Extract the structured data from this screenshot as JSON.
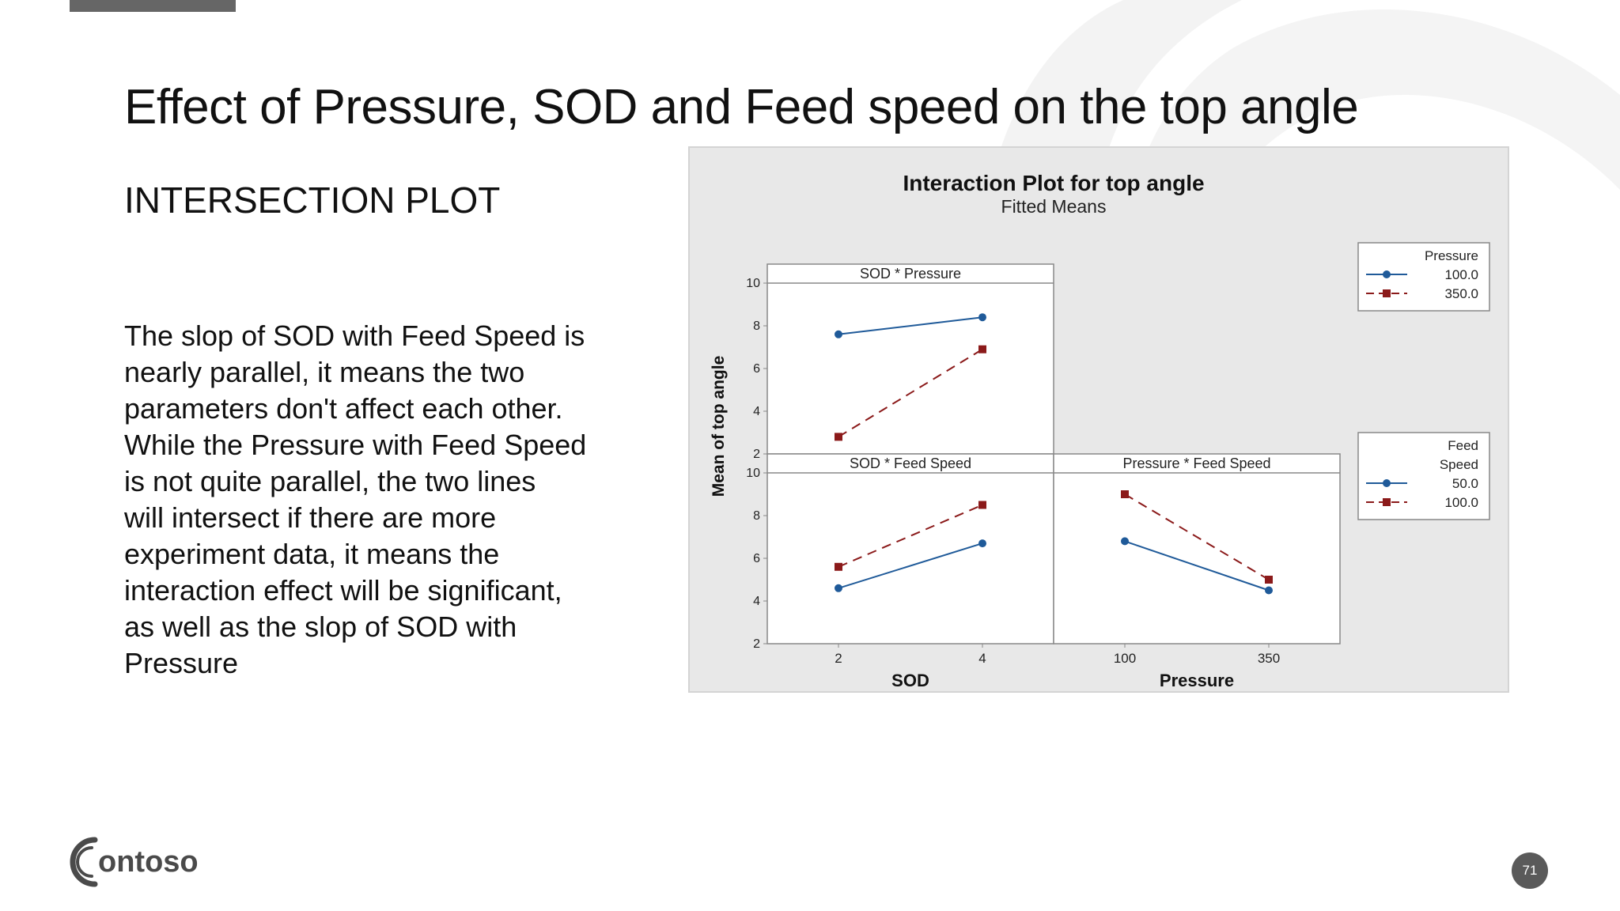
{
  "slide": {
    "title": "Effect of Pressure, SOD and Feed speed on the top angle",
    "subtitle": "INTERSECTION PLOT",
    "body": "The slop of SOD with Feed Speed is\nnearly parallel, it means the two\nparameters don't affect each other.\nWhile the Pressure with Feed Speed\nis not quite parallel, the two lines\nwill intersect if there are more\nexperiment data, it means the\ninteraction effect will be significant,\nas well as the slop of SOD with\nPressure",
    "page_number": "71",
    "logo_text": "ontoso"
  },
  "colors": {
    "series_blue": "#1f5a99",
    "series_red": "#8b1a1a",
    "panel_bg": "#e8e8e8",
    "page_badge": "#5a5a5a"
  },
  "chart_data": {
    "type": "line",
    "title": "Interaction Plot for top angle",
    "subtitle": "Fitted Means",
    "ylabel": "Mean of top angle",
    "ylim": [
      2,
      10
    ],
    "yticks": [
      2,
      4,
      6,
      8,
      10
    ],
    "panels": [
      {
        "title": "SOD * Pressure",
        "x": [
          "2",
          "4"
        ],
        "series": [
          {
            "name": "100.0",
            "legend_group": "Pressure",
            "values": [
              7.6,
              8.4
            ]
          },
          {
            "name": "350.0",
            "legend_group": "Pressure",
            "values": [
              2.8,
              6.9
            ]
          }
        ]
      },
      {
        "title": "SOD * Feed Speed",
        "xlabel": "SOD",
        "x": [
          "2",
          "4"
        ],
        "series": [
          {
            "name": "50.0",
            "legend_group": "Feed Speed",
            "values": [
              4.6,
              6.7
            ]
          },
          {
            "name": "100.0",
            "legend_group": "Feed Speed",
            "values": [
              5.6,
              8.5
            ]
          }
        ]
      },
      {
        "title": "Pressure * Feed Speed",
        "xlabel": "Pressure",
        "x": [
          "100",
          "350"
        ],
        "series": [
          {
            "name": "50.0",
            "legend_group": "Feed Speed",
            "values": [
              6.8,
              4.5
            ]
          },
          {
            "name": "100.0",
            "legend_group": "Feed Speed",
            "values": [
              9.0,
              5.0
            ]
          }
        ]
      }
    ],
    "legends": [
      {
        "title": "Pressure",
        "entries": [
          "100.0",
          "350.0"
        ]
      },
      {
        "title": "Feed Speed",
        "entries": [
          "50.0",
          "100.0"
        ]
      }
    ]
  }
}
